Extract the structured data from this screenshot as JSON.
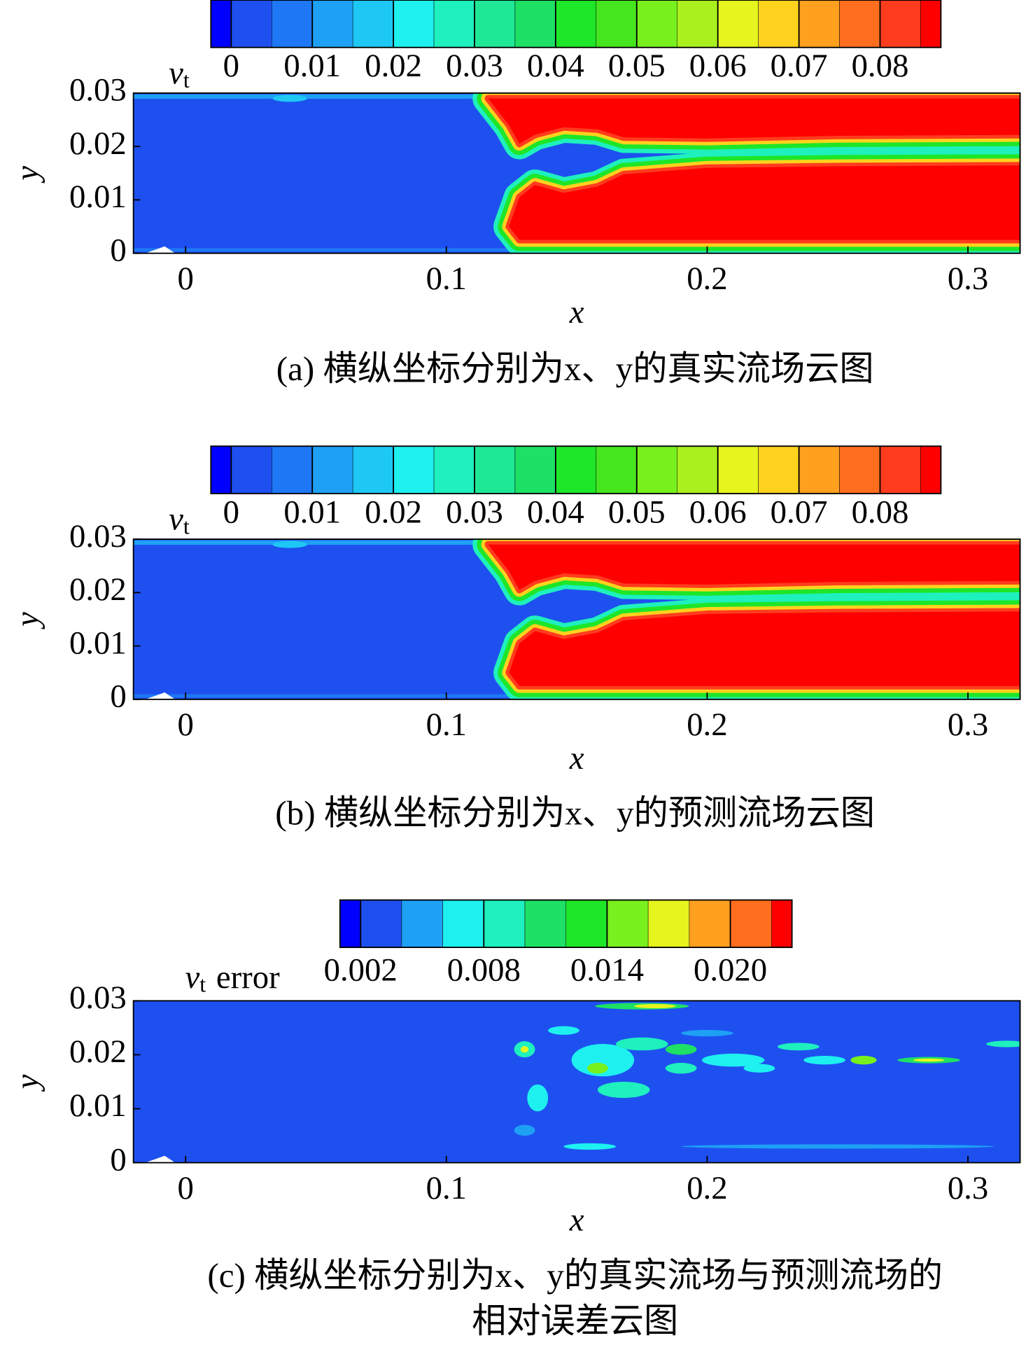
{
  "chart_data": [
    {
      "type": "contour",
      "title": [
        "(a) 横纵坐标分别为x、y的真实流场云图"
      ],
      "colorbar": {
        "label": "v",
        "label_subscript": "t",
        "levels": [
          -0.0025,
          0,
          0.005,
          0.01,
          0.015,
          0.02,
          0.025,
          0.03,
          0.035,
          0.04,
          0.045,
          0.05,
          0.055,
          0.06,
          0.065,
          0.07,
          0.075,
          0.08,
          0.085,
          0.0875
        ],
        "colors": [
          "#0000ff",
          "#1e50f0",
          "#1e78f5",
          "#1ea0f5",
          "#1ec8f5",
          "#1ef0f0",
          "#1ef0be",
          "#1ee896",
          "#1ee064",
          "#1ee628",
          "#46e61e",
          "#78f01e",
          "#aaf01e",
          "#e6f51e",
          "#ffd21e",
          "#ffa01e",
          "#ff6e1e",
          "#ff3c1e",
          "#ff0000"
        ],
        "ticks": [
          0,
          0.01,
          0.02,
          0.03,
          0.04,
          0.05,
          0.06,
          0.07,
          0.08
        ]
      },
      "xlabel": "x",
      "ylabel": "y",
      "xlim": [
        -0.02,
        0.32
      ],
      "ylim": [
        0,
        0.03
      ],
      "xticks": [
        0,
        0.1,
        0.2,
        0.3
      ],
      "yticks": [
        0,
        0.01,
        0.02,
        0.03
      ]
    },
    {
      "type": "contour",
      "title": [
        "(b) 横纵坐标分别为x、y的预测流场云图"
      ],
      "colorbar": {
        "label": "v",
        "label_subscript": "t",
        "levels": [
          -0.0025,
          0,
          0.005,
          0.01,
          0.015,
          0.02,
          0.025,
          0.03,
          0.035,
          0.04,
          0.045,
          0.05,
          0.055,
          0.06,
          0.065,
          0.07,
          0.075,
          0.08,
          0.085,
          0.0875
        ],
        "colors": [
          "#0000ff",
          "#1e50f0",
          "#1e78f5",
          "#1ea0f5",
          "#1ec8f5",
          "#1ef0f0",
          "#1ef0be",
          "#1ee896",
          "#1ee064",
          "#1ee628",
          "#46e61e",
          "#78f01e",
          "#aaf01e",
          "#e6f51e",
          "#ffd21e",
          "#ffa01e",
          "#ff6e1e",
          "#ff3c1e",
          "#ff0000"
        ],
        "ticks": [
          0,
          0.01,
          0.02,
          0.03,
          0.04,
          0.05,
          0.06,
          0.07,
          0.08
        ]
      },
      "xlabel": "x",
      "ylabel": "y",
      "xlim": [
        -0.02,
        0.32
      ],
      "ylim": [
        0,
        0.03
      ],
      "xticks": [
        0,
        0.1,
        0.2,
        0.3
      ],
      "yticks": [
        0,
        0.01,
        0.02,
        0.03
      ]
    },
    {
      "type": "contour",
      "title": [
        "(c) 横纵坐标分别为x、y的真实流场与预测流场的",
        "相对误差云图"
      ],
      "colorbar": {
        "label": "v",
        "label_subscript": "t",
        "label_suffix": "error",
        "levels": [
          0.001,
          0.002,
          0.004,
          0.006,
          0.008,
          0.01,
          0.012,
          0.014,
          0.016,
          0.018,
          0.02,
          0.022,
          0.023
        ],
        "colors": [
          "#0000ff",
          "#1e50f0",
          "#1ea0f5",
          "#1ef0f0",
          "#1ef0be",
          "#1ee064",
          "#1ee628",
          "#78f01e",
          "#e6f51e",
          "#ffa01e",
          "#ff6e1e",
          "#ff0000"
        ],
        "ticks": [
          0.002,
          0.008,
          0.014,
          {
            "value": 0.02,
            "label": "0.020"
          }
        ]
      },
      "xlabel": "x",
      "ylabel": "y",
      "xlim": [
        -0.02,
        0.32
      ],
      "ylim": [
        0,
        0.03
      ],
      "xticks": [
        0,
        0.1,
        0.2,
        0.3
      ],
      "yticks": [
        0,
        0.01,
        0.02,
        0.03
      ]
    }
  ]
}
